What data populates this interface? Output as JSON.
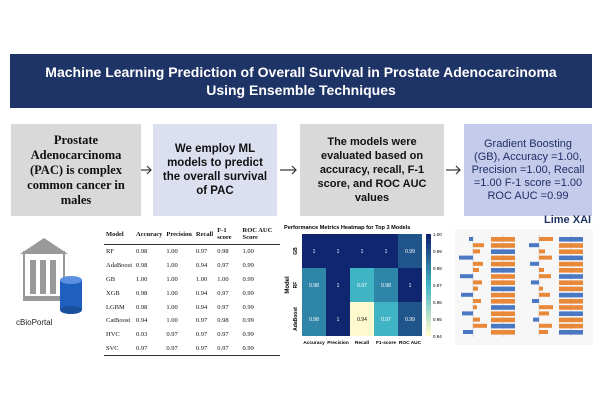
{
  "title": "Machine Learning Prediction of Overall Survival in Prostate Adenocarcinoma Using Ensemble Techniques",
  "flow": [
    "Prostate Adenocarcinoma (PAC) is complex common cancer in males",
    "We employ ML models to predict the overall survival of PAC",
    "The models were evaluated based on accuracy, recall, F-1 score, and ROC AUC values",
    "Gradient Boosting (GB), Accuracy =1.00, Precision =1.00, Recall =1.00 F-1 score =1.00 ROC AUC =0.99"
  ],
  "source_label": "cBioPortal",
  "table": {
    "headers": [
      "Model",
      "Accuracy",
      "Precision",
      "Recall",
      "F-1 score",
      "ROC AUC Score"
    ],
    "rows": [
      [
        "RF",
        "0.98",
        "1.00",
        "0.97",
        "0.98",
        "1.00"
      ],
      [
        "AdaBoost",
        "0.98",
        "1.00",
        "0.94",
        "0.97",
        "0.99"
      ],
      [
        "GB",
        "1.00",
        "1.00",
        "1.00",
        "1.00",
        "0.99"
      ],
      [
        "XGB",
        "0.98",
        "1.00",
        "0.94",
        "0.97",
        "0.99"
      ],
      [
        "LGBM",
        "0.98",
        "1.00",
        "0.94",
        "0.97",
        "0.99"
      ],
      [
        "CatBoost",
        "0.94",
        "1.00",
        "0.97",
        "0.98",
        "0.99"
      ],
      [
        "HVC",
        "0.93",
        "0.97",
        "0.97",
        "0.97",
        "0.99"
      ],
      [
        "SVC",
        "0.97",
        "0.97",
        "0.97",
        "0.97",
        "0.99"
      ]
    ]
  },
  "heatmap": {
    "title": "Performance Metrics Heatmap for Top 3 Models",
    "ylabel": "Model",
    "models": [
      "GB",
      "RF",
      "AdaBoost"
    ],
    "metrics": [
      "Accuracy",
      "Precision",
      "Recall",
      "F1-score",
      "ROC AUC"
    ],
    "values": [
      [
        1,
        1,
        1,
        1,
        0.99
      ],
      [
        0.98,
        1,
        0.97,
        0.98,
        1
      ],
      [
        0.98,
        1,
        0.94,
        0.97,
        0.99
      ]
    ],
    "colorbar_ticks": [
      "1.00",
      "0.99",
      "0.98",
      "0.97",
      "0.96",
      "0.95",
      "0.94"
    ]
  },
  "lime_label": "Lime XAI",
  "colors": {
    "banner": "#1f3466",
    "box_gray": "#d9d9d9",
    "box_lavender": "#dcdff0",
    "box_blue": "#c5cbea",
    "arrow": "#333333",
    "lime_orange": "#e8893a",
    "lime_blue": "#4a78c2"
  }
}
